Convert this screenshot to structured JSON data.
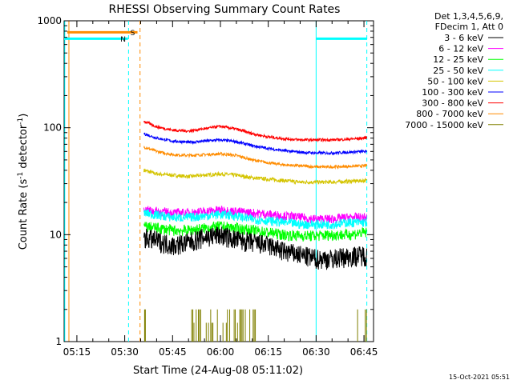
{
  "chart_data": {
    "type": "line",
    "title": "RHESSI Observing Summary Count Rates",
    "xlabel": "Start Time (24-Aug-08 05:11:02)",
    "ylabel_main": "Count Rate (s",
    "ylabel_sup1": "-1",
    "ylabel_mid": " detector",
    "ylabel_sup2": "-1",
    "ylabel_end": ")",
    "yscale": "log",
    "ylim": [
      1,
      1000
    ],
    "xlim_min": [
      311,
      408
    ],
    "y_ticks": [
      {
        "value": 1,
        "label": "1"
      },
      {
        "value": 10,
        "label": "10"
      },
      {
        "value": 100,
        "label": "100"
      },
      {
        "value": 1000,
        "label": "1000"
      }
    ],
    "x_ticks": [
      {
        "value": 315,
        "label": "05:15"
      },
      {
        "value": 330,
        "label": "05:30"
      },
      {
        "value": 345,
        "label": "05:45"
      },
      {
        "value": 360,
        "label": "06:00"
      },
      {
        "value": 375,
        "label": "06:15"
      },
      {
        "value": 390,
        "label": "06:30"
      },
      {
        "value": 405,
        "label": "06:45"
      }
    ],
    "legend_header": [
      "Det 1,3,4,5,6,9,",
      "FDecim 1, Att 0"
    ],
    "legend_position": "right",
    "series": [
      {
        "name": "3 - 6 keV",
        "color": "#000000",
        "x": [
          336,
          345,
          350,
          355,
          360,
          365,
          370,
          375,
          380,
          385,
          390,
          395,
          400,
          405,
          406
        ],
        "values": [
          9.5,
          8,
          8.5,
          9.5,
          10,
          9,
          8.5,
          8,
          7,
          6.5,
          6,
          6,
          6.3,
          6.5,
          6.3
        ]
      },
      {
        "name": "6 - 12 keV",
        "color": "#ff00ff",
        "x": [
          336,
          345,
          350,
          355,
          360,
          365,
          370,
          375,
          380,
          385,
          390,
          395,
          400,
          405,
          406
        ],
        "values": [
          17,
          16,
          16,
          16.5,
          17,
          16.5,
          16,
          15.5,
          15,
          14.5,
          14,
          14,
          14.5,
          14.5,
          14.5
        ]
      },
      {
        "name": "12 - 25 keV",
        "color": "#00ff00",
        "x": [
          336,
          345,
          350,
          355,
          360,
          365,
          370,
          375,
          380,
          385,
          390,
          395,
          400,
          405,
          406
        ],
        "values": [
          12,
          11,
          11,
          11.5,
          12,
          11.5,
          11,
          10.5,
          10,
          9.8,
          9.8,
          10,
          10,
          10.5,
          10.5
        ]
      },
      {
        "name": "25 - 50 keV",
        "color": "#00ffff",
        "x": [
          336,
          345,
          350,
          355,
          360,
          365,
          370,
          375,
          380,
          385,
          390,
          395,
          400,
          405,
          406
        ],
        "values": [
          16,
          14.5,
          14.5,
          15,
          15.5,
          15,
          14,
          13.5,
          13,
          12.5,
          12.5,
          12.5,
          13,
          13,
          13
        ]
      },
      {
        "name": "50 - 100 keV",
        "color": "#d4c400",
        "x": [
          336,
          340,
          345,
          350,
          355,
          360,
          365,
          370,
          375,
          380,
          385,
          390,
          395,
          400,
          405,
          406
        ],
        "values": [
          40,
          37,
          36,
          35,
          36,
          37,
          36,
          34,
          33,
          32,
          31,
          31,
          31,
          31.5,
          32,
          32
        ]
      },
      {
        "name": "100 - 300 keV",
        "color": "#0000ff",
        "x": [
          336,
          340,
          345,
          350,
          355,
          360,
          365,
          370,
          375,
          380,
          385,
          390,
          395,
          400,
          405,
          406
        ],
        "values": [
          88,
          80,
          75,
          73,
          75,
          77,
          74,
          68,
          64,
          61,
          59,
          58,
          58,
          59,
          60,
          60
        ]
      },
      {
        "name": "300 - 800 keV",
        "color": "#ff0000",
        "x": [
          336,
          340,
          345,
          350,
          355,
          360,
          365,
          370,
          375,
          380,
          385,
          390,
          395,
          400,
          405,
          406
        ],
        "values": [
          115,
          102,
          95,
          93,
          98,
          103,
          97,
          88,
          82,
          79,
          77,
          77,
          77,
          78,
          80,
          81
        ]
      },
      {
        "name": "800 - 7000 keV",
        "color": "#ff8c00",
        "x": [
          336,
          340,
          345,
          350,
          355,
          360,
          365,
          370,
          375,
          380,
          385,
          390,
          395,
          400,
          405,
          406
        ],
        "values": [
          66,
          60,
          56,
          55,
          56,
          57,
          55,
          50,
          47,
          45,
          44,
          43,
          43,
          43.5,
          44,
          44.5
        ]
      },
      {
        "name": "7000 - 15000 keV",
        "color": "#808000",
        "x": [],
        "values": []
      }
    ],
    "flag_bars": [
      {
        "label": "S",
        "color": "#ff8c00",
        "x_start": 312,
        "x_end": 334,
        "y": 780
      },
      {
        "label": "N",
        "color": "#00ffff",
        "x_start": 311,
        "x_end": 331,
        "y": 680
      },
      {
        "label": "",
        "color": "#00ffff",
        "x_start": 390,
        "x_end": 406,
        "y": 680
      }
    ]
  },
  "timestamp": "15-Oct-2021 05:51"
}
